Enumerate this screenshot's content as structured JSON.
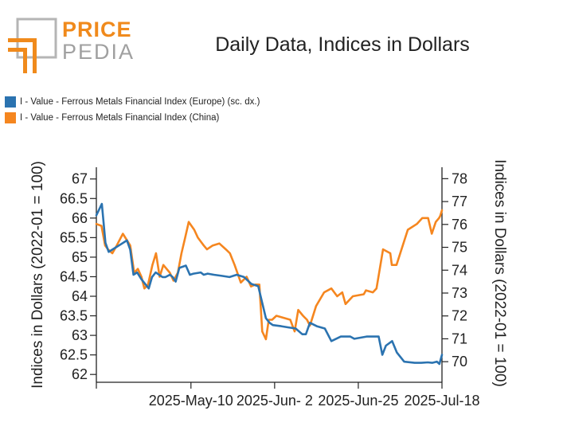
{
  "logo": {
    "top": "PRICE",
    "bottom": "PEDIA"
  },
  "colors": {
    "europe": "#2b73b0",
    "china": "#f5861f",
    "brand_orange": "#f08a1c",
    "brand_grey": "#a0a0a0"
  },
  "chart_data": {
    "type": "line",
    "title": "Daily Data, Indices in Dollars",
    "legend_placement": "top-left",
    "grid": false,
    "x_ticks": [
      "2025-May-10",
      "2025-Jun- 2",
      "2025-Jun-25",
      "2025-Jul-18"
    ],
    "x_tick_days": [
      0,
      23,
      46,
      69
    ],
    "x_range_days": [
      -26,
      69
    ],
    "left_axis": {
      "label": "Indices in Dollars (2022-01 = 100)",
      "ticks": [
        "62",
        "62.5",
        "63",
        "63.5",
        "64",
        "64.5",
        "65",
        "65.5",
        "66",
        "66.5",
        "67"
      ],
      "ylim": [
        61.8,
        67.3
      ]
    },
    "right_axis": {
      "label": "Indices in Dollars (2022-01 = 100)",
      "ticks": [
        "70",
        "71",
        "72",
        "73",
        "74",
        "75",
        "76",
        "77",
        "78"
      ],
      "ylim": [
        69.1,
        78.5
      ]
    },
    "series": [
      {
        "name": "I - Value - Ferrous Metals Financial Index (Europe) (sc. dx.)",
        "axis": "right",
        "color": "#2b73b0",
        "x": [
          -26,
          -24.5,
          -23.5,
          -22.6,
          -21.6,
          -20.6,
          -19.6,
          -17.6,
          -16.7,
          -15.8,
          -14.8,
          -13.6,
          -11.6,
          -10.7,
          -9.7,
          -7.8,
          -7.0,
          -5.8,
          -5.0,
          -4.2,
          -3.2,
          -1.4,
          -0.3,
          0.7,
          2.7,
          3.5,
          4.6,
          6.3,
          8.5,
          10.6,
          12.6,
          14.6,
          16.6,
          18.5,
          20.6,
          21.6,
          22.5,
          24.8,
          26.8,
          28.8,
          30.6,
          31.6,
          32.7,
          34.6,
          36.8,
          38.6,
          41.2,
          43.8,
          44.9,
          48.3,
          51.6,
          52.6,
          53.6,
          55.3,
          56.6,
          58.6,
          61.5,
          63.3,
          65.1,
          66.3,
          67.6,
          68.3,
          69
        ],
        "y": [
          76.4,
          76.9,
          75.2,
          74.8,
          74.9,
          75.0,
          75.1,
          75.3,
          74.9,
          73.8,
          73.9,
          73.6,
          73.2,
          73.7,
          73.9,
          73.7,
          73.7,
          73.8,
          73.7,
          73.5,
          74.1,
          74.2,
          73.8,
          73.85,
          73.9,
          73.8,
          73.85,
          73.8,
          73.75,
          73.7,
          73.8,
          73.7,
          73.4,
          73.3,
          71.9,
          71.7,
          71.6,
          71.55,
          71.5,
          71.45,
          71.2,
          71.2,
          71.7,
          71.55,
          71.45,
          70.9,
          71.1,
          71.1,
          71.0,
          71.1,
          71.1,
          70.3,
          70.7,
          70.9,
          70.4,
          70.0,
          69.95,
          69.95,
          69.97,
          69.95,
          70.0,
          69.9,
          70.3
        ]
      },
      {
        "name": "I - Value - Ferrous Metals Financial Index (China)",
        "axis": "left",
        "color": "#f5861f",
        "x": [
          -26,
          -24.6,
          -23.6,
          -22.8,
          -21.6,
          -20.4,
          -18.7,
          -16.7,
          -15.6,
          -14.6,
          -13.6,
          -12.8,
          -11.8,
          -10.6,
          -9.6,
          -8.6,
          -7.6,
          -5.8,
          -4.8,
          -3.6,
          -2.6,
          -1.6,
          -0.6,
          0.9,
          1.9,
          3.5,
          4.4,
          6.0,
          7.8,
          9.6,
          10.7,
          12.0,
          13.7,
          15.3,
          16.5,
          17.7,
          18.8,
          19.6,
          20.6,
          21.4,
          22.3,
          23.5,
          25.4,
          27.3,
          28.5,
          29.5,
          30.8,
          31.9,
          32.7,
          34.4,
          36.6,
          38.6,
          40.2,
          41.6,
          42.5,
          44.5,
          47.5,
          48.1,
          50.0,
          51.0,
          52.8,
          54.8,
          55.2,
          56.5,
          59.6,
          62.1,
          63.6,
          65.2,
          66.2,
          67.3,
          68.2,
          68.5,
          69
        ],
        "y": [
          65.85,
          65.8,
          65.3,
          65.2,
          65.1,
          65.3,
          65.6,
          65.3,
          64.6,
          64.7,
          64.5,
          64.2,
          64.3,
          64.8,
          65.1,
          64.5,
          64.8,
          64.6,
          64.4,
          64.6,
          65.1,
          65.5,
          65.9,
          65.7,
          65.5,
          65.3,
          65.2,
          65.3,
          65.35,
          65.2,
          65.1,
          64.8,
          64.35,
          64.5,
          64.25,
          64.3,
          64.3,
          63.1,
          62.9,
          63.4,
          63.4,
          63.5,
          63.45,
          63.4,
          63.1,
          63.65,
          63.5,
          63.4,
          63.25,
          63.75,
          64.1,
          64.2,
          64.0,
          64.1,
          63.8,
          64.0,
          64.05,
          64.15,
          64.1,
          64.2,
          65.2,
          65.1,
          64.8,
          64.8,
          65.7,
          65.85,
          66.0,
          66.0,
          65.6,
          65.9,
          66.0,
          66.05,
          66.2
        ]
      }
    ]
  }
}
